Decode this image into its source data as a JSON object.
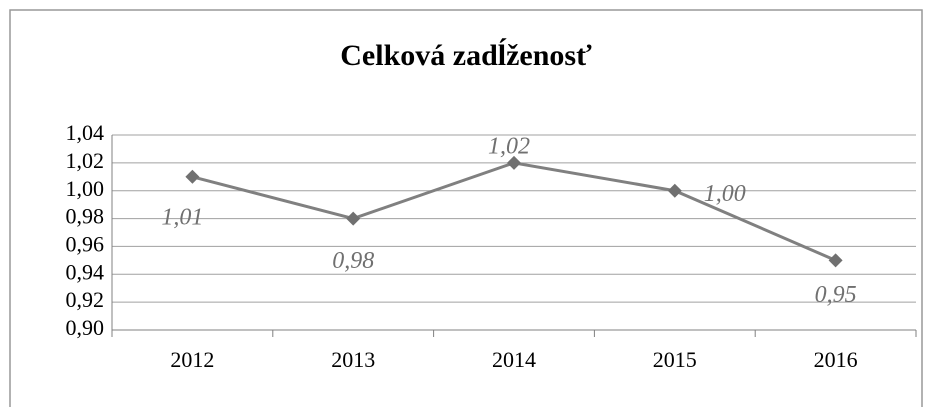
{
  "chart_data": {
    "type": "line",
    "title": "Celková zadĺženosť",
    "categories": [
      "2012",
      "2013",
      "2014",
      "2015",
      "2016"
    ],
    "series": [
      {
        "name": "Celková zadĺženosť",
        "color": "#808080",
        "values": [
          1.01,
          0.98,
          1.02,
          1.0,
          0.95
        ],
        "value_labels": [
          "1,01",
          "0,98",
          "1,02",
          "1,00",
          "0,95"
        ]
      }
    ],
    "ylim": [
      0.9,
      1.04
    ],
    "yticks": [
      {
        "value": 0.9,
        "label": "0,90"
      },
      {
        "value": 0.92,
        "label": "0,92"
      },
      {
        "value": 0.94,
        "label": "0,94"
      },
      {
        "value": 0.96,
        "label": "0,96"
      },
      {
        "value": 0.98,
        "label": "0,98"
      },
      {
        "value": 1.0,
        "label": "1,00"
      },
      {
        "value": 1.02,
        "label": "1,02"
      },
      {
        "value": 1.04,
        "label": "1,04"
      }
    ],
    "grid": true
  }
}
